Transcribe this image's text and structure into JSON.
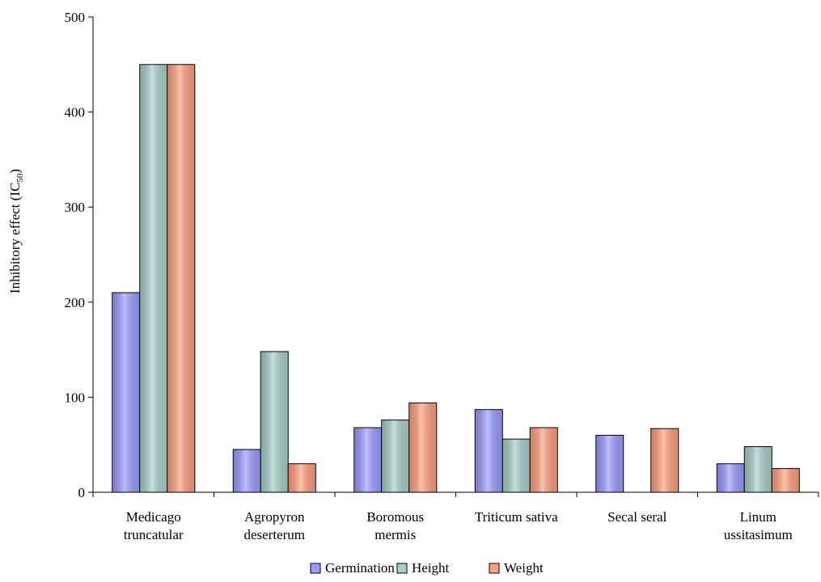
{
  "chart_data": {
    "type": "bar",
    "ylabel": "Inhibitory effect (IC50)",
    "ylabel_main": "Inhibitory effect (IC",
    "ylabel_sub": "50",
    "ylabel_close": ")",
    "xlabel": "",
    "title": "",
    "ylim": [
      0,
      500
    ],
    "yticks": [
      0,
      100,
      200,
      300,
      400,
      500
    ],
    "grid": false,
    "legend_position": "bottom",
    "categories": [
      [
        "Medicago",
        "truncatular"
      ],
      [
        "Agropyron",
        "deserterum"
      ],
      [
        "Boromous",
        "mermis"
      ],
      [
        "Triticum sativa"
      ],
      [
        "Secal seral"
      ],
      [
        "Linum",
        "ussitasimum"
      ]
    ],
    "series": [
      {
        "name": "Germination",
        "color": "#9a9aff",
        "values": [
          210,
          45,
          68,
          87,
          60,
          30
        ]
      },
      {
        "name": "Height",
        "color": "#a7cfc9",
        "values": [
          450,
          148,
          76,
          56,
          0,
          48
        ]
      },
      {
        "name": "Weight",
        "color": "#ff9f7f",
        "values": [
          450,
          30,
          94,
          68,
          67,
          25
        ]
      }
    ]
  }
}
